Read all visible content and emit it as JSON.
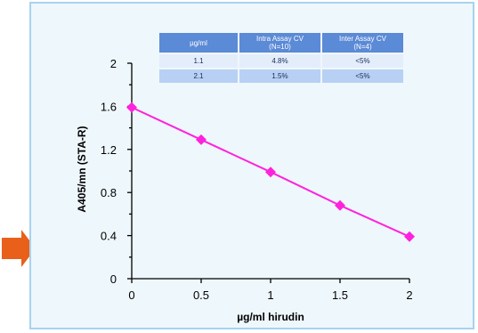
{
  "colors": {
    "frame_bg": "#eef7fc",
    "frame_border": "#a8d2ee",
    "series": "#ff22dd",
    "arrow": "#e8601a",
    "axis": "#000000",
    "table_header": "#5b8ad6",
    "table_row_light": "#e4eefb",
    "table_row_dark": "#b8d0f4"
  },
  "decor": {
    "arrow_icon": "right-arrow-icon"
  },
  "cv_table": {
    "headers": [
      "µg/ml",
      "Intra Assay CV\n(N=10)",
      "Inter Assay CV\n(N=4)"
    ],
    "rows": [
      [
        "1.1",
        "4.8%",
        "<5%"
      ],
      [
        "2.1",
        "1.5%",
        "<5%"
      ]
    ]
  },
  "chart_data": {
    "type": "line",
    "title": "",
    "xlabel": "µg/ml hirudin",
    "ylabel": "A405/mn (STA-R)",
    "xlim": [
      0,
      2
    ],
    "ylim": [
      0,
      2
    ],
    "x_ticks": [
      0,
      0.5,
      1,
      1.5,
      2
    ],
    "x_tick_labels": [
      "0",
      "0.5",
      "1",
      "1.5",
      "2"
    ],
    "y_ticks": [
      0,
      0.4,
      0.8,
      1.2,
      1.6,
      2
    ],
    "y_tick_labels": [
      "0",
      "0.4",
      "0.8",
      "1.2",
      "1.6",
      "2"
    ],
    "grid": false,
    "legend": false,
    "series": [
      {
        "x": [
          0,
          0.5,
          1,
          1.5,
          2
        ],
        "values": [
          1.59,
          1.29,
          0.99,
          0.68,
          0.39
        ],
        "marker": "diamond"
      }
    ]
  }
}
